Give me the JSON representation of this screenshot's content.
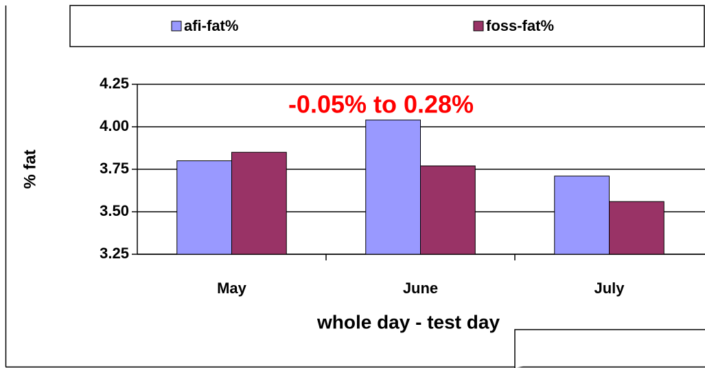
{
  "chart_data": {
    "type": "bar",
    "categories": [
      "May",
      "June",
      "July"
    ],
    "series": [
      {
        "name": "afi-fat%",
        "color": "#9999ff",
        "values": [
          3.8,
          4.04,
          3.71
        ]
      },
      {
        "name": "foss-fat%",
        "color": "#993366",
        "values": [
          3.85,
          3.77,
          3.56
        ]
      }
    ],
    "ylim": [
      3.25,
      4.25
    ],
    "yticks": [
      {
        "value": 3.25,
        "label": "3.25"
      },
      {
        "value": 3.5,
        "label": "3.50"
      },
      {
        "value": 3.75,
        "label": "3.75"
      },
      {
        "value": 4.0,
        "label": "4.00"
      },
      {
        "value": 4.25,
        "label": "4.25"
      }
    ],
    "y_label": "% fat",
    "x_label": "whole day - test day",
    "annotation": "-0.05% to 0.28%",
    "grid": true,
    "legend": "top"
  }
}
